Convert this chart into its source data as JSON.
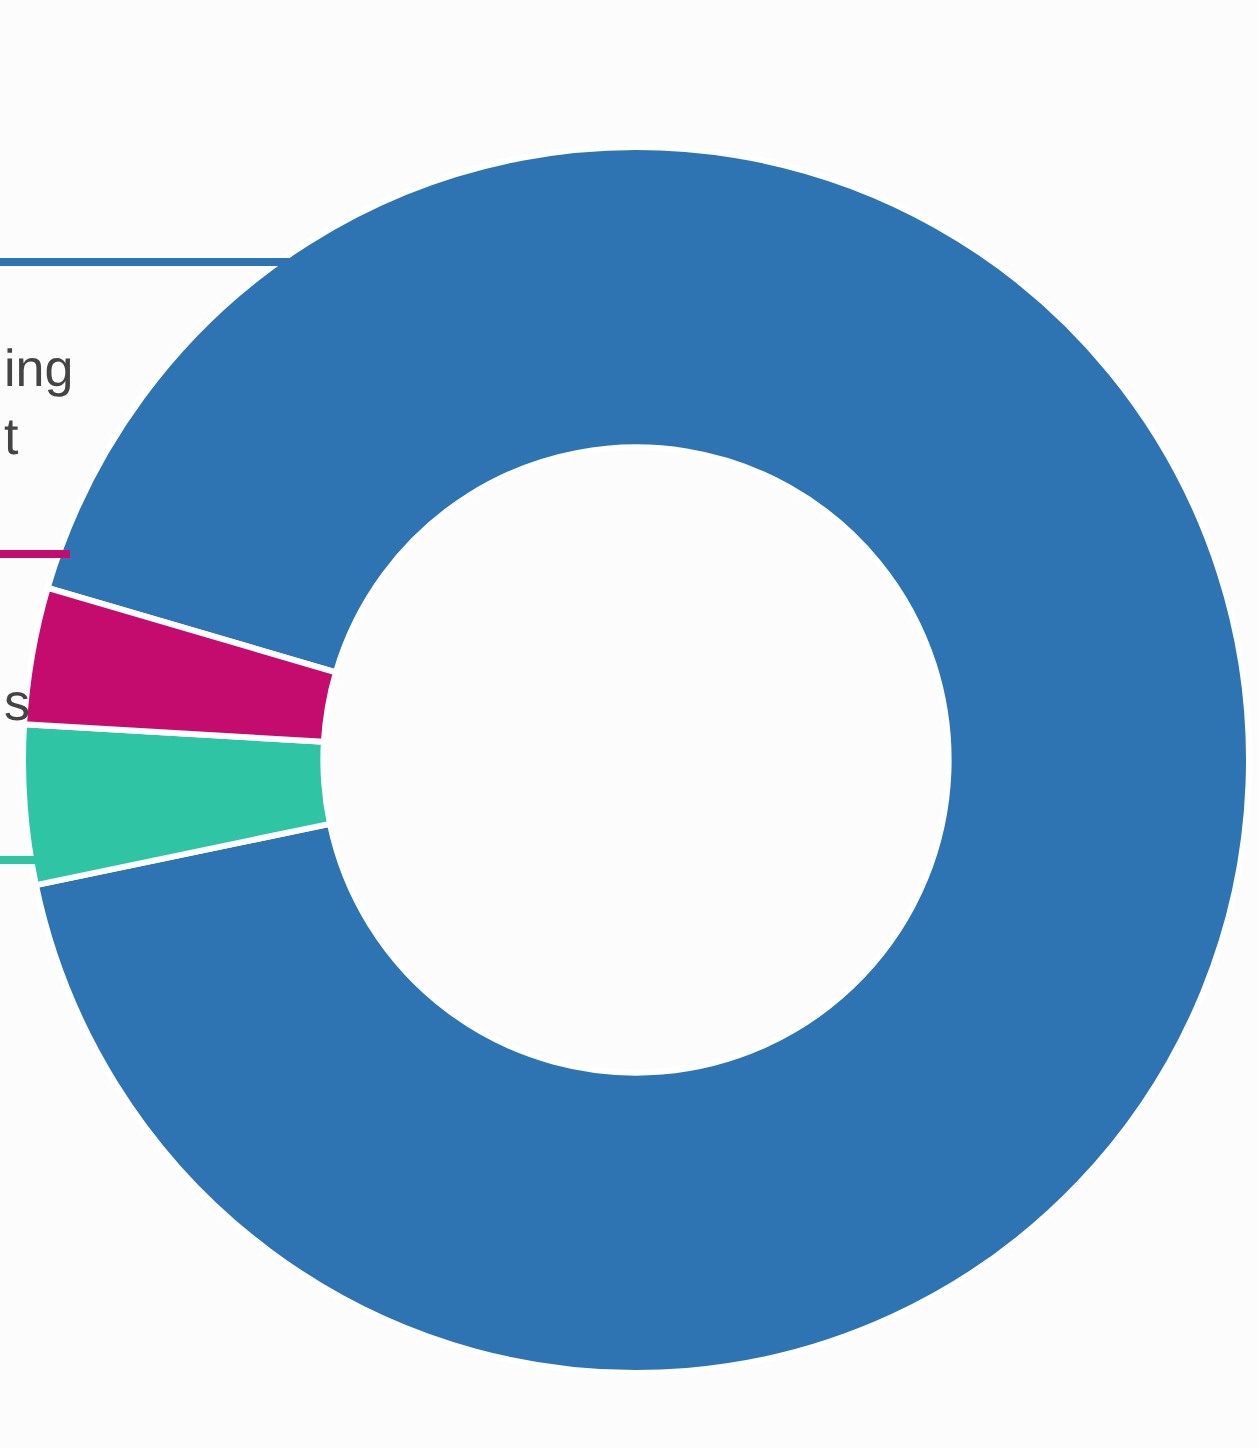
{
  "chart_data": {
    "type": "donut",
    "categories": [
      "ing\nt",
      null,
      "s"
    ],
    "values": [
      92.2,
      4.2,
      3.6
    ],
    "colors": [
      "#2e73b2",
      "#2ec4a4",
      "#c40c6e"
    ],
    "legend": false
  }
}
